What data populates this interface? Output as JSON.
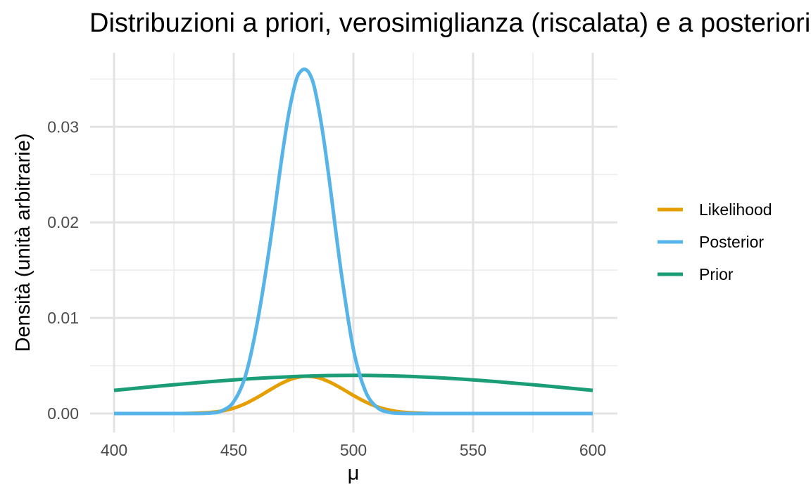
{
  "chart_data": {
    "type": "line",
    "title": "Distribuzioni a priori, verosimiglianza (riscalata) e a posteriori",
    "xlabel": "μ",
    "ylabel": "Densità (unità arbitrarie)",
    "xlim": [
      400,
      600
    ],
    "ylim": [
      0,
      0.036
    ],
    "x_ticks": [
      400,
      450,
      500,
      550,
      600
    ],
    "x_tick_labels": [
      "400",
      "450",
      "500",
      "550",
      "600"
    ],
    "y_ticks": [
      0,
      0.01,
      0.02,
      0.03
    ],
    "y_tick_labels": [
      "0.00",
      "0.01",
      "0.02",
      "0.03"
    ],
    "grid": true,
    "legend_position": "right",
    "series": [
      {
        "name": "Likelihood",
        "color": "#E69F00",
        "x": [
          400,
          410,
          420,
          430,
          440,
          445,
          450,
          455,
          460,
          465,
          470,
          475,
          480,
          485,
          490,
          495,
          500,
          505,
          510,
          515,
          520,
          530,
          540,
          550,
          560,
          580,
          600
        ],
        "y": [
          0,
          0,
          0,
          1e-05,
          0.00011,
          0.00026,
          0.00056,
          0.00105,
          0.00171,
          0.00245,
          0.00316,
          0.00368,
          0.0039,
          0.00377,
          0.0033,
          0.00263,
          0.00189,
          0.00122,
          0.0007,
          0.00036,
          0.00016,
          2e-05,
          0,
          0,
          0,
          0,
          0
        ]
      },
      {
        "name": "Posterior",
        "color": "#56B4E9",
        "x": [
          400,
          430,
          440,
          445,
          450,
          455,
          460,
          465,
          470,
          473,
          476,
          478,
          480,
          482,
          484,
          487,
          490,
          495,
          500,
          505,
          510,
          515,
          520,
          530,
          550,
          600
        ],
        "y": [
          0,
          0,
          5e-05,
          0.00028,
          0.00124,
          0.00403,
          0.00972,
          0.0175,
          0.0266,
          0.0314,
          0.0348,
          0.0358,
          0.036,
          0.0354,
          0.0338,
          0.0297,
          0.0243,
          0.0146,
          0.00672,
          0.00235,
          0.00062,
          0.00012,
          2e-05,
          0,
          0,
          0
        ]
      },
      {
        "name": "Prior",
        "color": "#1B9E77",
        "x": [
          400,
          420,
          440,
          460,
          480,
          500,
          520,
          540,
          560,
          580,
          600
        ],
        "y": [
          0.00242,
          0.0029,
          0.00333,
          0.00368,
          0.00391,
          0.00399,
          0.00391,
          0.00368,
          0.00333,
          0.0029,
          0.00242
        ]
      }
    ]
  }
}
